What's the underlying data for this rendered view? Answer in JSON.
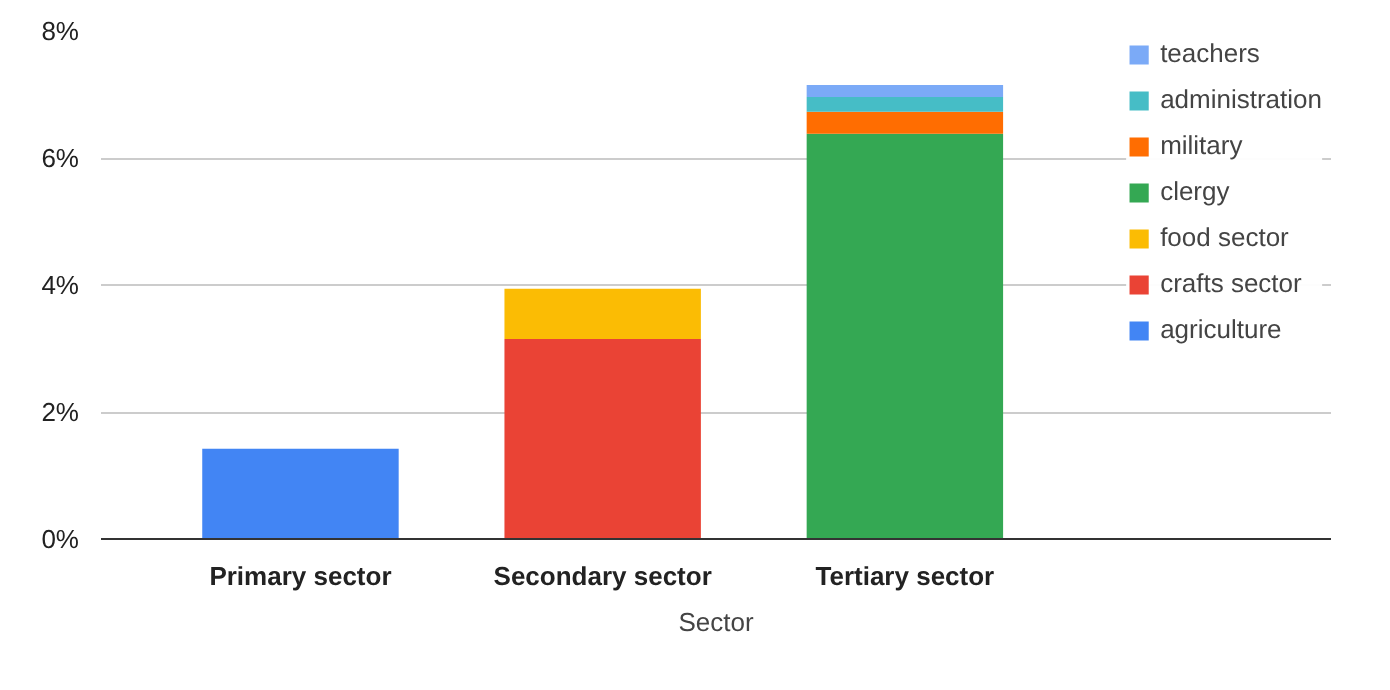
{
  "chart_data": {
    "type": "bar",
    "stacked": true,
    "xlabel": "Sector",
    "categories": [
      "Primary sector",
      "Secondary sector",
      "Tertiary sector"
    ],
    "series": [
      {
        "name": "agriculture",
        "color": "#4285f4",
        "values": [
          1.42,
          null,
          null
        ]
      },
      {
        "name": "crafts sector",
        "color": "#ea4335",
        "values": [
          null,
          3.15,
          null
        ]
      },
      {
        "name": "food sector",
        "color": "#fbbc04",
        "values": [
          null,
          0.79,
          null
        ]
      },
      {
        "name": "clergy",
        "color": "#34a853",
        "values": [
          null,
          null,
          6.38
        ]
      },
      {
        "name": "military",
        "color": "#ff6d01",
        "values": [
          null,
          null,
          0.35
        ]
      },
      {
        "name": "administration",
        "color": "#46bdc6",
        "values": [
          null,
          null,
          0.23
        ]
      },
      {
        "name": "teachers",
        "color": "#7baaf7",
        "values": [
          null,
          null,
          0.19
        ]
      }
    ],
    "ylim": [
      0,
      8
    ],
    "yticks": [
      {
        "value": 0,
        "label": "0%"
      },
      {
        "value": 2,
        "label": "2%"
      },
      {
        "value": 4,
        "label": "4%"
      },
      {
        "value": 6,
        "label": "6%"
      },
      {
        "value": 8,
        "label": "8%"
      }
    ],
    "grid": "y",
    "legend": "top right"
  }
}
